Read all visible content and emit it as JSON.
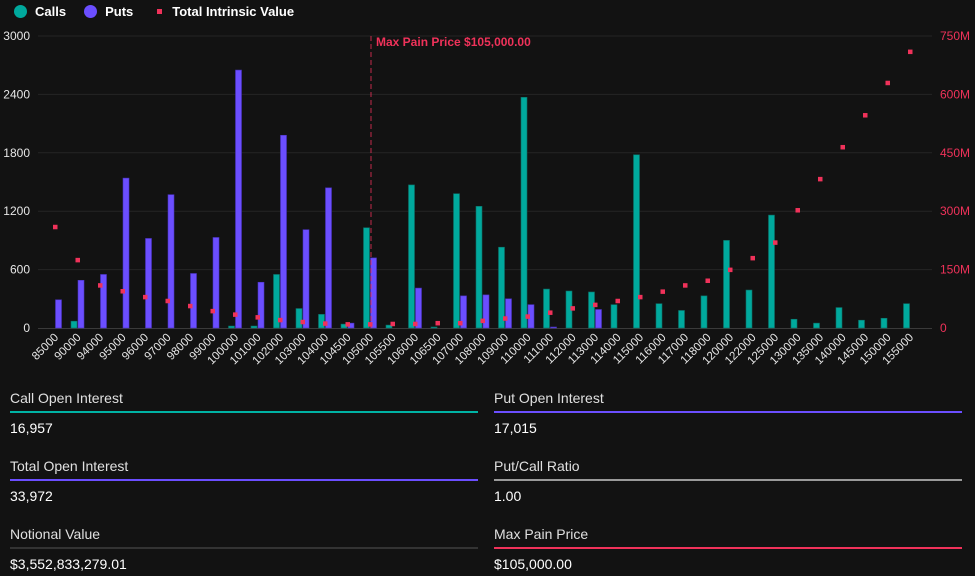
{
  "legend": {
    "calls": "Calls",
    "puts": "Puts",
    "tiv": "Total Intrinsic Value"
  },
  "colors": {
    "calls": "#00a99d",
    "puts": "#6b4eff",
    "tiv": "#f0325a",
    "background": "#121212",
    "grid": "#242424"
  },
  "chart_data": {
    "type": "bar",
    "categories": [
      "85000",
      "90000",
      "94000",
      "95000",
      "96000",
      "97000",
      "98000",
      "99000",
      "100000",
      "101000",
      "102000",
      "103000",
      "104000",
      "104500",
      "105000",
      "105500",
      "106000",
      "106500",
      "107000",
      "108000",
      "109000",
      "110000",
      "111000",
      "112000",
      "113000",
      "114000",
      "115000",
      "116000",
      "117000",
      "118000",
      "120000",
      "122000",
      "125000",
      "130000",
      "135000",
      "140000",
      "145000",
      "150000",
      "155000"
    ],
    "series": [
      {
        "name": "Calls",
        "axis": "left",
        "values": [
          0,
          70,
          0,
          0,
          0,
          0,
          0,
          0,
          20,
          20,
          550,
          200,
          140,
          40,
          1030,
          30,
          1470,
          10,
          1380,
          1250,
          830,
          2370,
          400,
          380,
          370,
          240,
          1780,
          250,
          180,
          330,
          900,
          390,
          1160,
          90,
          50,
          210,
          80,
          100,
          250
        ]
      },
      {
        "name": "Puts",
        "axis": "left",
        "values": [
          290,
          490,
          550,
          1540,
          920,
          1370,
          560,
          930,
          2650,
          470,
          1980,
          1010,
          1440,
          50,
          720,
          0,
          410,
          0,
          330,
          340,
          300,
          240,
          10,
          0,
          190,
          0,
          0,
          0,
          0,
          0,
          0,
          0,
          0,
          0,
          0,
          0,
          0,
          0,
          0
        ]
      },
      {
        "name": "Total Intrinsic Value",
        "axis": "right",
        "type": "scatter",
        "values": [
          260,
          175,
          110,
          95,
          80,
          70,
          57,
          44,
          35,
          28,
          21,
          16,
          12,
          10,
          10,
          11,
          11,
          13,
          13,
          19,
          25,
          30,
          40,
          51,
          60,
          70,
          80,
          94,
          110,
          122,
          150,
          180,
          220,
          303,
          383,
          465,
          547,
          630,
          710
        ]
      }
    ],
    "left_axis": {
      "ylim": [
        0,
        3000
      ],
      "ticks": [
        "0",
        "600",
        "1200",
        "1800",
        "2400",
        "3000"
      ]
    },
    "right_axis": {
      "ylim": [
        0,
        750
      ],
      "unit": "M",
      "ticks": [
        "0",
        "150M",
        "300M",
        "450M",
        "600M",
        "750M"
      ]
    },
    "annotation": {
      "label": "Max Pain Price $105,000.00",
      "category": "105000"
    },
    "grid": true,
    "legend_position": "top-left"
  },
  "stats": [
    {
      "label": "Call Open Interest",
      "value": "16,957",
      "color": "#00b3a4"
    },
    {
      "label": "Put Open Interest",
      "value": "17,015",
      "color": "#6b4eff"
    },
    {
      "label": "Total Open Interest",
      "value": "33,972",
      "color": "#6b4eff"
    },
    {
      "label": "Put/Call Ratio",
      "value": "1.00",
      "color": "#9a9a9a"
    },
    {
      "label": "Notional Value",
      "value": "$3,552,833,279.01",
      "color": "#333333"
    },
    {
      "label": "Max Pain Price",
      "value": "$105,000.00",
      "color": "#f0325a"
    }
  ]
}
